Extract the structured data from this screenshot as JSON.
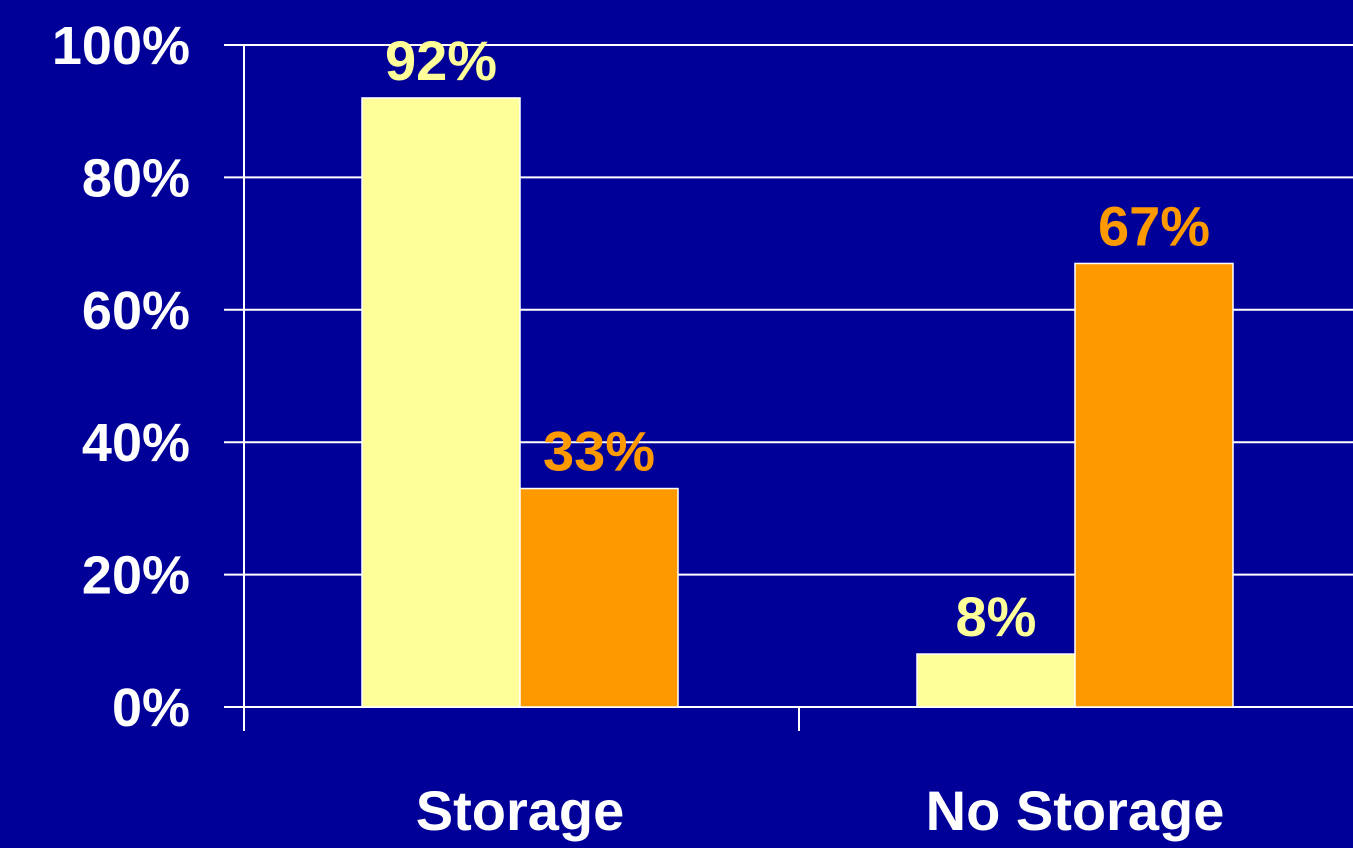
{
  "chart_data": {
    "type": "bar",
    "categories": [
      "Storage",
      "No Storage"
    ],
    "series": [
      {
        "values": [
          92,
          8
        ],
        "labels": [
          "92%",
          "8%"
        ],
        "color": "#ffff99"
      },
      {
        "values": [
          33,
          67
        ],
        "labels": [
          "33%",
          "67%"
        ],
        "color": "#ff9900"
      }
    ],
    "ylim": [
      0,
      100
    ],
    "yticks": [
      0,
      20,
      40,
      60,
      80,
      100
    ],
    "ytick_labels": [
      "0%",
      "20%",
      "40%",
      "60%",
      "80%",
      "100%"
    ],
    "grid": true,
    "legend": "none",
    "title": "",
    "xlabel": "",
    "ylabel": ""
  },
  "colors": {
    "background": "#000099",
    "axis": "#ffffff",
    "gridline": "#ffffff"
  }
}
